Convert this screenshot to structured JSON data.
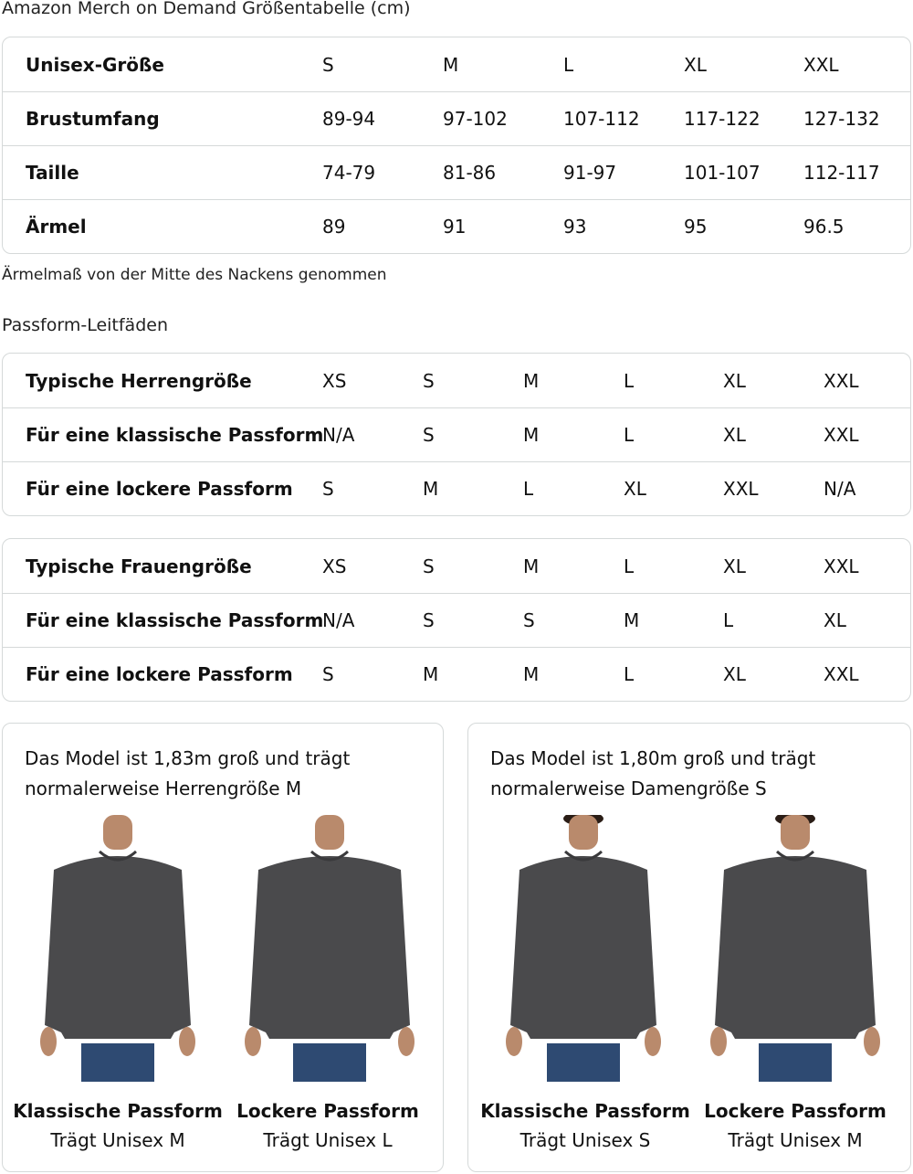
{
  "size_chart": {
    "title": "Amazon Merch on Demand Größentabelle (cm)",
    "rows": [
      {
        "label": "Unisex-Größe",
        "values": [
          "S",
          "M",
          "L",
          "XL",
          "XXL"
        ]
      },
      {
        "label": "Brustumfang",
        "values": [
          "89-94",
          "97-102",
          "107-112",
          "117-122",
          "127-132"
        ]
      },
      {
        "label": "Taille",
        "values": [
          "74-79",
          "81-86",
          "91-97",
          "101-107",
          "112-117"
        ]
      },
      {
        "label": "Ärmel",
        "values": [
          "89",
          "91",
          "93",
          "95",
          "96.5"
        ]
      }
    ],
    "note": "Ärmelmaß von der Mitte des Nackens genommen"
  },
  "fit_guides": {
    "title": "Passform-Leitfäden",
    "men": [
      {
        "label": "Typische Herrengröße",
        "values": [
          "XS",
          "S",
          "M",
          "L",
          "XL",
          "XXL"
        ]
      },
      {
        "label": "Für eine klassische Passform",
        "values": [
          "N/A",
          "S",
          "M",
          "L",
          "XL",
          "XXL"
        ]
      },
      {
        "label": "Für eine lockere Passform",
        "values": [
          "S",
          "M",
          "L",
          "XL",
          "XXL",
          "N/A"
        ]
      }
    ],
    "women": [
      {
        "label": "Typische Frauengröße",
        "values": [
          "XS",
          "S",
          "M",
          "L",
          "XL",
          "XXL"
        ]
      },
      {
        "label": "Für eine klassische Passform",
        "values": [
          "N/A",
          "S",
          "S",
          "M",
          "L",
          "XL"
        ]
      },
      {
        "label": "Für eine lockere Passform",
        "values": [
          "S",
          "M",
          "M",
          "L",
          "XL",
          "XXL"
        ]
      }
    ]
  },
  "models": [
    {
      "caption_1": "Das Model ist 1,83m groß und trägt",
      "caption_2": "normalerweise Herrengröße M",
      "fits": [
        {
          "title": "Klassische Passform",
          "sub": "Trägt Unisex M"
        },
        {
          "title": "Lockere Passform",
          "sub": "Trägt Unisex L"
        }
      ]
    },
    {
      "caption_1": "Das Model ist 1,80m groß und trägt",
      "caption_2": "normalerweise Damengröße S",
      "fits": [
        {
          "title": "Klassische Passform",
          "sub": "Trägt Unisex S"
        },
        {
          "title": "Lockere Passform",
          "sub": "Trägt Unisex M"
        }
      ]
    }
  ],
  "colors": {
    "border": "#d5d9d9",
    "sweater": "#4a4a4c",
    "jeans": "#2e4a72"
  }
}
